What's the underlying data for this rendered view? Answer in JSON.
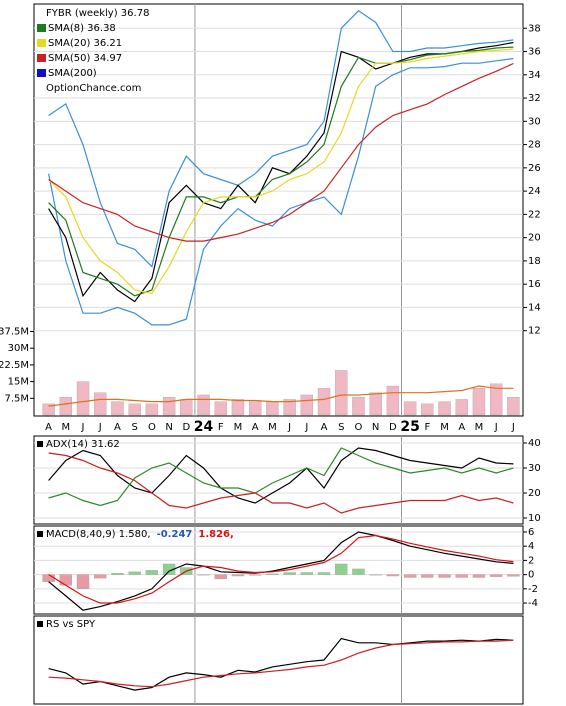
{
  "chart_data": [
    {
      "type": "line",
      "title": "FYBR (weekly) 36.78",
      "source": "OptionChance.com",
      "ylim": [
        11.2,
        40
      ],
      "yticks": [
        12,
        14,
        16,
        18,
        20,
        22,
        24,
        26,
        28,
        30,
        32,
        34,
        36,
        38
      ],
      "grid": true,
      "series": [
        {
          "color": "#3a8ed8",
          "values": [
            30.5,
            31.5,
            28,
            23,
            19.5,
            19,
            17.5,
            24,
            27,
            25.5,
            25,
            24.5,
            25.5,
            27,
            27.5,
            28,
            30,
            38,
            39.5,
            38.5,
            36,
            36,
            36.3,
            36.3,
            36.5,
            36.7,
            36.8,
            37
          ]
        },
        {
          "color": "#3a8ed8",
          "values": [
            25.5,
            18,
            13.5,
            13.5,
            14,
            13.5,
            12.5,
            12.5,
            13,
            19,
            21,
            22.5,
            21.5,
            21,
            22.5,
            23,
            23.5,
            22,
            27,
            33,
            34,
            34.6,
            34.6,
            34.7,
            35,
            35,
            35.2,
            35.4
          ]
        },
        {
          "color": "#000000",
          "values": [
            22.5,
            20,
            15,
            17,
            15.5,
            14.5,
            16.5,
            23,
            24.5,
            23,
            22.5,
            24.5,
            23,
            26,
            25.5,
            27,
            29,
            36,
            35.5,
            34.5,
            35,
            35.5,
            35.8,
            35.8,
            36,
            36.3,
            36.5,
            36.78
          ]
        },
        {
          "name": "SMA(8) 36.38",
          "color": "#1e7a1e",
          "values": [
            23,
            21.5,
            17,
            16.5,
            16,
            15,
            15.5,
            20,
            23.5,
            23.5,
            23,
            23.5,
            23.5,
            25,
            25.5,
            26.5,
            28,
            33,
            35.5,
            35,
            35,
            35.3,
            35.7,
            35.8,
            36,
            36.1,
            36.3,
            36.38
          ]
        },
        {
          "name": "SMA(20) 36.21",
          "color": "#e8d820",
          "values": [
            25,
            23.5,
            20,
            18,
            17,
            15.5,
            15.2,
            17.5,
            20.5,
            23,
            23.5,
            23.5,
            23.5,
            24,
            25,
            25.5,
            26.5,
            29,
            33,
            35,
            35,
            35.1,
            35.4,
            35.6,
            35.8,
            36,
            36.1,
            36.21
          ]
        },
        {
          "name": "SMA(50) 34.97",
          "color": "#cc2020",
          "values": [
            25,
            24,
            23,
            22.5,
            22,
            21,
            20.5,
            20,
            19.7,
            19.7,
            20,
            20.3,
            20.8,
            21.3,
            22,
            23,
            24,
            26,
            28,
            29.5,
            30.5,
            31,
            31.5,
            32.3,
            33,
            33.7,
            34.3,
            34.97
          ]
        },
        {
          "name": "SMA(200)",
          "color": "#1010c0",
          "values": [
            null,
            null,
            null,
            null,
            null,
            null,
            null,
            null,
            null,
            null,
            null,
            null,
            null,
            null,
            null,
            null,
            null,
            null,
            null,
            null,
            null,
            null,
            null,
            null,
            null,
            null,
            null,
            null
          ]
        }
      ]
    },
    {
      "type": "bar",
      "categories": [
        "A",
        "M",
        "J",
        "J",
        "A",
        "S",
        "O",
        "N",
        "D",
        "24",
        "F",
        "M",
        "A",
        "M",
        "J",
        "J",
        "A",
        "S",
        "O",
        "N",
        "D",
        "25",
        "F",
        "M",
        "A",
        "M",
        "J",
        "J"
      ],
      "ylim": [
        0,
        44000000
      ],
      "yticks": [
        {
          "value": 7500000,
          "label": "7.5M"
        },
        {
          "value": 15000000,
          "label": "15M"
        },
        {
          "value": 22500000,
          "label": "22.5M"
        },
        {
          "value": 30000000,
          "label": "30M"
        },
        {
          "value": 37500000,
          "label": "37.5M"
        }
      ],
      "series": [
        {
          "color": "#f0b8c2",
          "values": [
            5000000,
            8000000,
            15000000,
            10000000,
            6000000,
            5000000,
            5000000,
            8000000,
            7000000,
            9000000,
            6000000,
            7000000,
            6000000,
            6000000,
            7000000,
            9000000,
            12000000,
            20000000,
            8000000,
            10000000,
            13000000,
            6000000,
            5000000,
            6000000,
            7000000,
            12000000,
            14000000,
            8000000
          ]
        },
        {
          "type": "line",
          "color": "#e07020",
          "values": [
            4000000,
            5000000,
            6000000,
            7000000,
            7000000,
            6500000,
            6000000,
            6000000,
            7000000,
            7000000,
            7000000,
            6500000,
            6500000,
            6000000,
            6000000,
            6500000,
            7000000,
            9000000,
            9000000,
            9500000,
            10000000,
            10000000,
            10000000,
            10500000,
            11000000,
            13000000,
            12000000,
            12000000
          ]
        }
      ]
    },
    {
      "type": "line",
      "title": "ADX(14) 31.62",
      "ylim": [
        8,
        42.4
      ],
      "yticks": [
        10,
        20,
        30,
        40
      ],
      "grid": true,
      "series": [
        {
          "color": "#000000",
          "values": [
            25,
            33,
            37,
            35,
            27,
            22,
            20,
            27,
            35,
            30,
            22,
            18,
            16,
            20,
            24,
            30,
            22,
            33,
            38,
            37,
            35,
            33,
            32,
            31,
            30,
            34,
            32,
            31.62
          ]
        },
        {
          "color": "#2a8a2a",
          "values": [
            18,
            20,
            17,
            15,
            17,
            26,
            30,
            32,
            28,
            24,
            22,
            22,
            20,
            24,
            27,
            30,
            27,
            38,
            35,
            32,
            30,
            28,
            29,
            30,
            28,
            30,
            28,
            30
          ]
        },
        {
          "color": "#cc2020",
          "values": [
            36,
            35,
            33,
            30,
            28,
            25,
            20,
            15,
            14,
            16,
            18,
            19,
            20,
            16,
            16,
            14,
            16,
            12,
            14,
            15,
            16,
            17,
            17,
            17,
            19,
            17,
            18,
            16
          ]
        }
      ]
    },
    {
      "type": "line",
      "title": "MACD(8,40,9) 1.580,",
      "ylim": [
        -5.4,
        6.7
      ],
      "yticks": [
        -4,
        -2,
        0,
        2,
        4,
        6
      ],
      "grid": true,
      "up_color": "#8fd08f",
      "down_color": "#e89aa2",
      "series": [
        {
          "name": "-0.247",
          "type": "bar",
          "color": "#2255cc",
          "values": [
            -1,
            -1.5,
            -2,
            -0.5,
            0.2,
            0.4,
            0.6,
            1.5,
            1,
            0,
            -0.6,
            -0.2,
            -0.1,
            0.1,
            0.3,
            0.3,
            0.3,
            1.5,
            0.8,
            0,
            -0.2,
            -0.4,
            -0.4,
            -0.4,
            -0.4,
            -0.4,
            -0.3,
            -0.247
          ]
        },
        {
          "color": "#000000",
          "values": [
            -1,
            -3,
            -5,
            -4.5,
            -3.8,
            -3,
            -2,
            0.5,
            1.5,
            1.2,
            0.4,
            0.3,
            0.2,
            0.5,
            1,
            1.5,
            2,
            4.5,
            6,
            5.5,
            4.8,
            4,
            3.5,
            3,
            2.6,
            2.2,
            1.8,
            1.58
          ]
        },
        {
          "name": "1.826,",
          "color": "#dd1010",
          "values": [
            0,
            -1.5,
            -3,
            -4,
            -4,
            -3.4,
            -2.6,
            -1,
            0.5,
            1.2,
            1,
            0.5,
            0.3,
            0.4,
            0.7,
            1.2,
            1.7,
            3,
            5.2,
            5.5,
            5,
            4.4,
            3.9,
            3.4,
            3,
            2.6,
            2.1,
            1.826
          ]
        }
      ]
    },
    {
      "type": "line",
      "title": "RS vs SPY",
      "ylim": [
        0,
        100
      ],
      "series": [
        {
          "color": "#000000",
          "values": [
            40,
            35,
            22,
            25,
            20,
            15,
            18,
            30,
            35,
            33,
            30,
            38,
            36,
            42,
            45,
            48,
            50,
            75,
            70,
            70,
            68,
            70,
            72,
            72,
            73,
            72,
            74,
            73
          ]
        },
        {
          "color": "#cc2020",
          "values": [
            30,
            29,
            27,
            25,
            22,
            20,
            19,
            22,
            26,
            30,
            32,
            34,
            35,
            37,
            39,
            42,
            44,
            50,
            58,
            64,
            68,
            69,
            70,
            71,
            71,
            72,
            72,
            73
          ]
        }
      ]
    }
  ]
}
